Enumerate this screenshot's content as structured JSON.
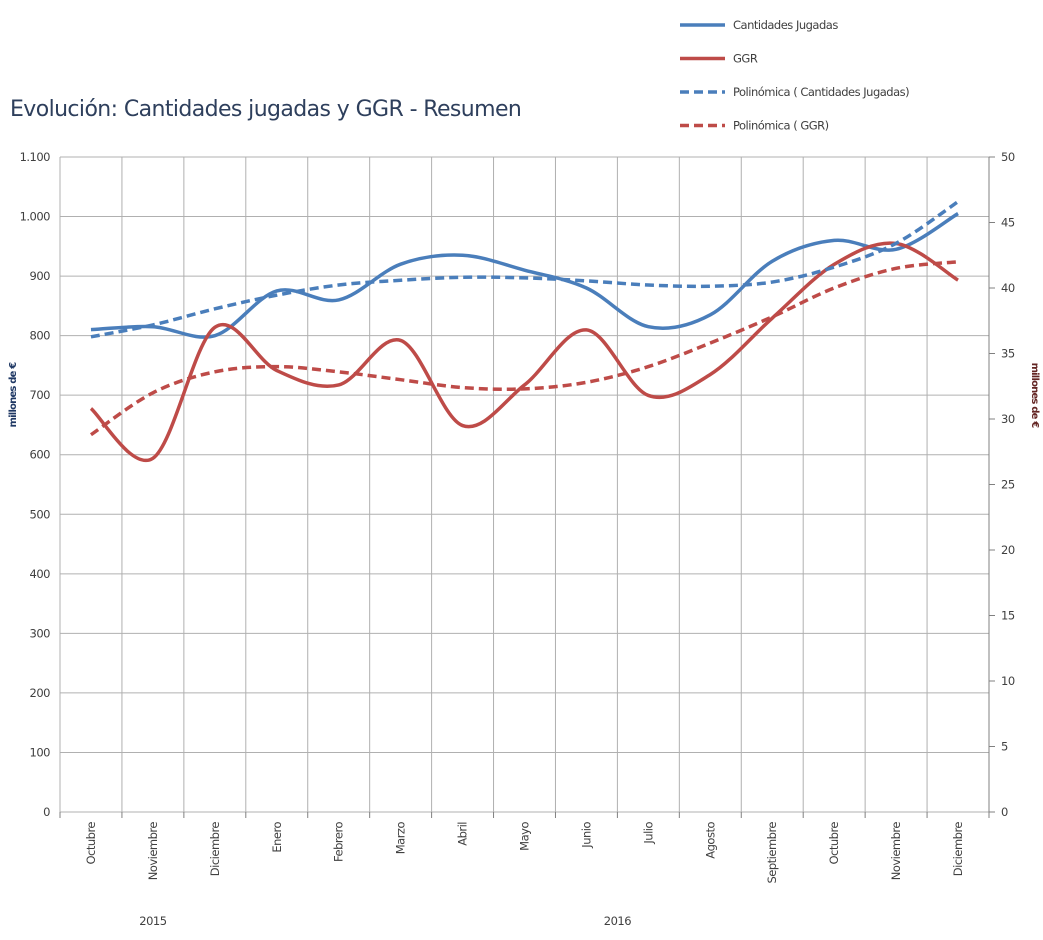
{
  "chart_data": {
    "type": "line",
    "title": "Evolución: Cantidades jugadas y GGR - Resumen",
    "ylabel": "millones de €",
    "y2label": "millones de €",
    "categories": [
      "Octubre",
      "Noviembre",
      "Diciembre",
      "Enero",
      "Febrero",
      "Marzo",
      "Abril",
      "Mayo",
      "Junio",
      "Julio",
      "Agosto",
      "Septiembre",
      "Octubre",
      "Noviembre",
      "Diciembre"
    ],
    "groups": [
      {
        "label": "2015",
        "span": 3
      },
      {
        "label": "2016",
        "span": 12
      }
    ],
    "series": [
      {
        "name": "Cantidades Jugadas",
        "color": "#4a7ebb",
        "dash": false,
        "values": [
          810,
          815,
          800,
          875,
          860,
          920,
          935,
          910,
          880,
          815,
          835,
          925,
          960,
          945,
          1005
        ]
      },
      {
        "name": "GGR",
        "color": "#be4b48",
        "dash": false,
        "axis": "y2",
        "values": [
          30.8,
          27,
          37,
          33.7,
          32.6,
          36,
          29.5,
          32.6,
          36.8,
          31.8,
          33.4,
          37.7,
          41.8,
          43.4,
          40.6
        ]
      },
      {
        "name": "Polinómica ( Cantidades Jugadas)",
        "color": "#4a7ebb",
        "dash": true,
        "values": [
          798,
          818,
          845,
          868,
          885,
          893,
          898,
          897,
          892,
          885,
          883,
          890,
          915,
          955,
          1025
        ]
      },
      {
        "name": "Polinómica ( GGR)",
        "color": "#be4b48",
        "dash": true,
        "axis": "y2",
        "values": [
          28.8,
          32,
          33.6,
          34,
          33.6,
          33,
          32.4,
          32.3,
          32.8,
          34,
          35.8,
          37.8,
          40,
          41.5,
          42
        ]
      }
    ],
    "ylim": [
      0,
      1100
    ],
    "yticks": [
      0,
      100,
      200,
      300,
      400,
      500,
      600,
      700,
      800,
      900,
      {
        "value": 1000,
        "label": "1.000"
      },
      {
        "value": 1100,
        "label": "1.100"
      }
    ],
    "y2lim": [
      0,
      50
    ],
    "y2ticks": [
      0,
      5,
      10,
      15,
      20,
      25,
      30,
      35,
      40,
      45,
      50
    ],
    "grid": true,
    "legend": "top-right"
  }
}
